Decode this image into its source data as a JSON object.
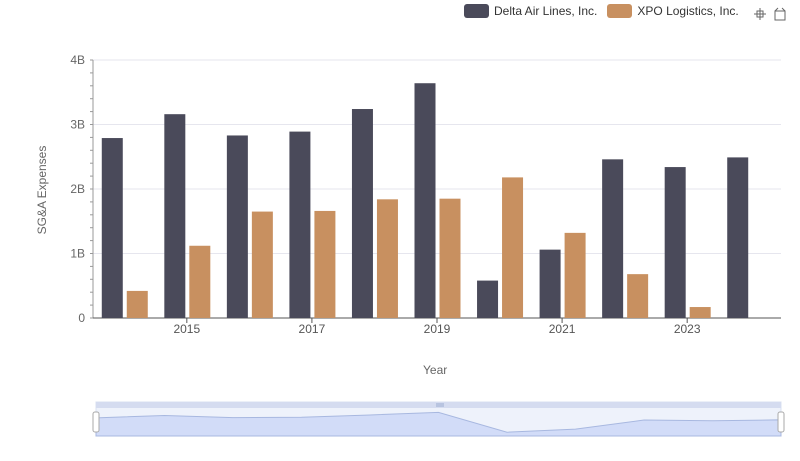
{
  "legend": [
    {
      "label": "Delta Air Lines, Inc.",
      "color": "#4a4a5a"
    },
    {
      "label": "XPO Logistics, Inc.",
      "color": "#c89060"
    }
  ],
  "toolbar": {
    "zoom_icon": "zoom-icon",
    "restore_icon": "restore-icon"
  },
  "chart_data": {
    "type": "bar",
    "title": "",
    "xlabel": "Year",
    "ylabel": "SG&A Expenses",
    "ylim": [
      0,
      4000000000
    ],
    "y_ticks": [
      "0",
      "1B",
      "2B",
      "3B",
      "4B"
    ],
    "x_ticks": [
      "2015",
      "2017",
      "2019",
      "2021",
      "2023"
    ],
    "categories": [
      "2014",
      "2015",
      "2016",
      "2017",
      "2018",
      "2019",
      "2020",
      "2021",
      "2022",
      "2023",
      "2024"
    ],
    "series": [
      {
        "name": "Delta Air Lines, Inc.",
        "color": "#4a4a5a",
        "values": [
          2790000000,
          3160000000,
          2830000000,
          2890000000,
          3240000000,
          3640000000,
          580000000,
          1060000000,
          2460000000,
          2340000000,
          2490000000
        ]
      },
      {
        "name": "XPO Logistics, Inc.",
        "color": "#c89060",
        "values": [
          420000000,
          1120000000,
          1650000000,
          1660000000,
          1840000000,
          1850000000,
          2180000000,
          1320000000,
          680000000,
          170000000,
          null
        ]
      }
    ],
    "grid": true,
    "legend_position": "top-right",
    "data_zoom": true
  }
}
